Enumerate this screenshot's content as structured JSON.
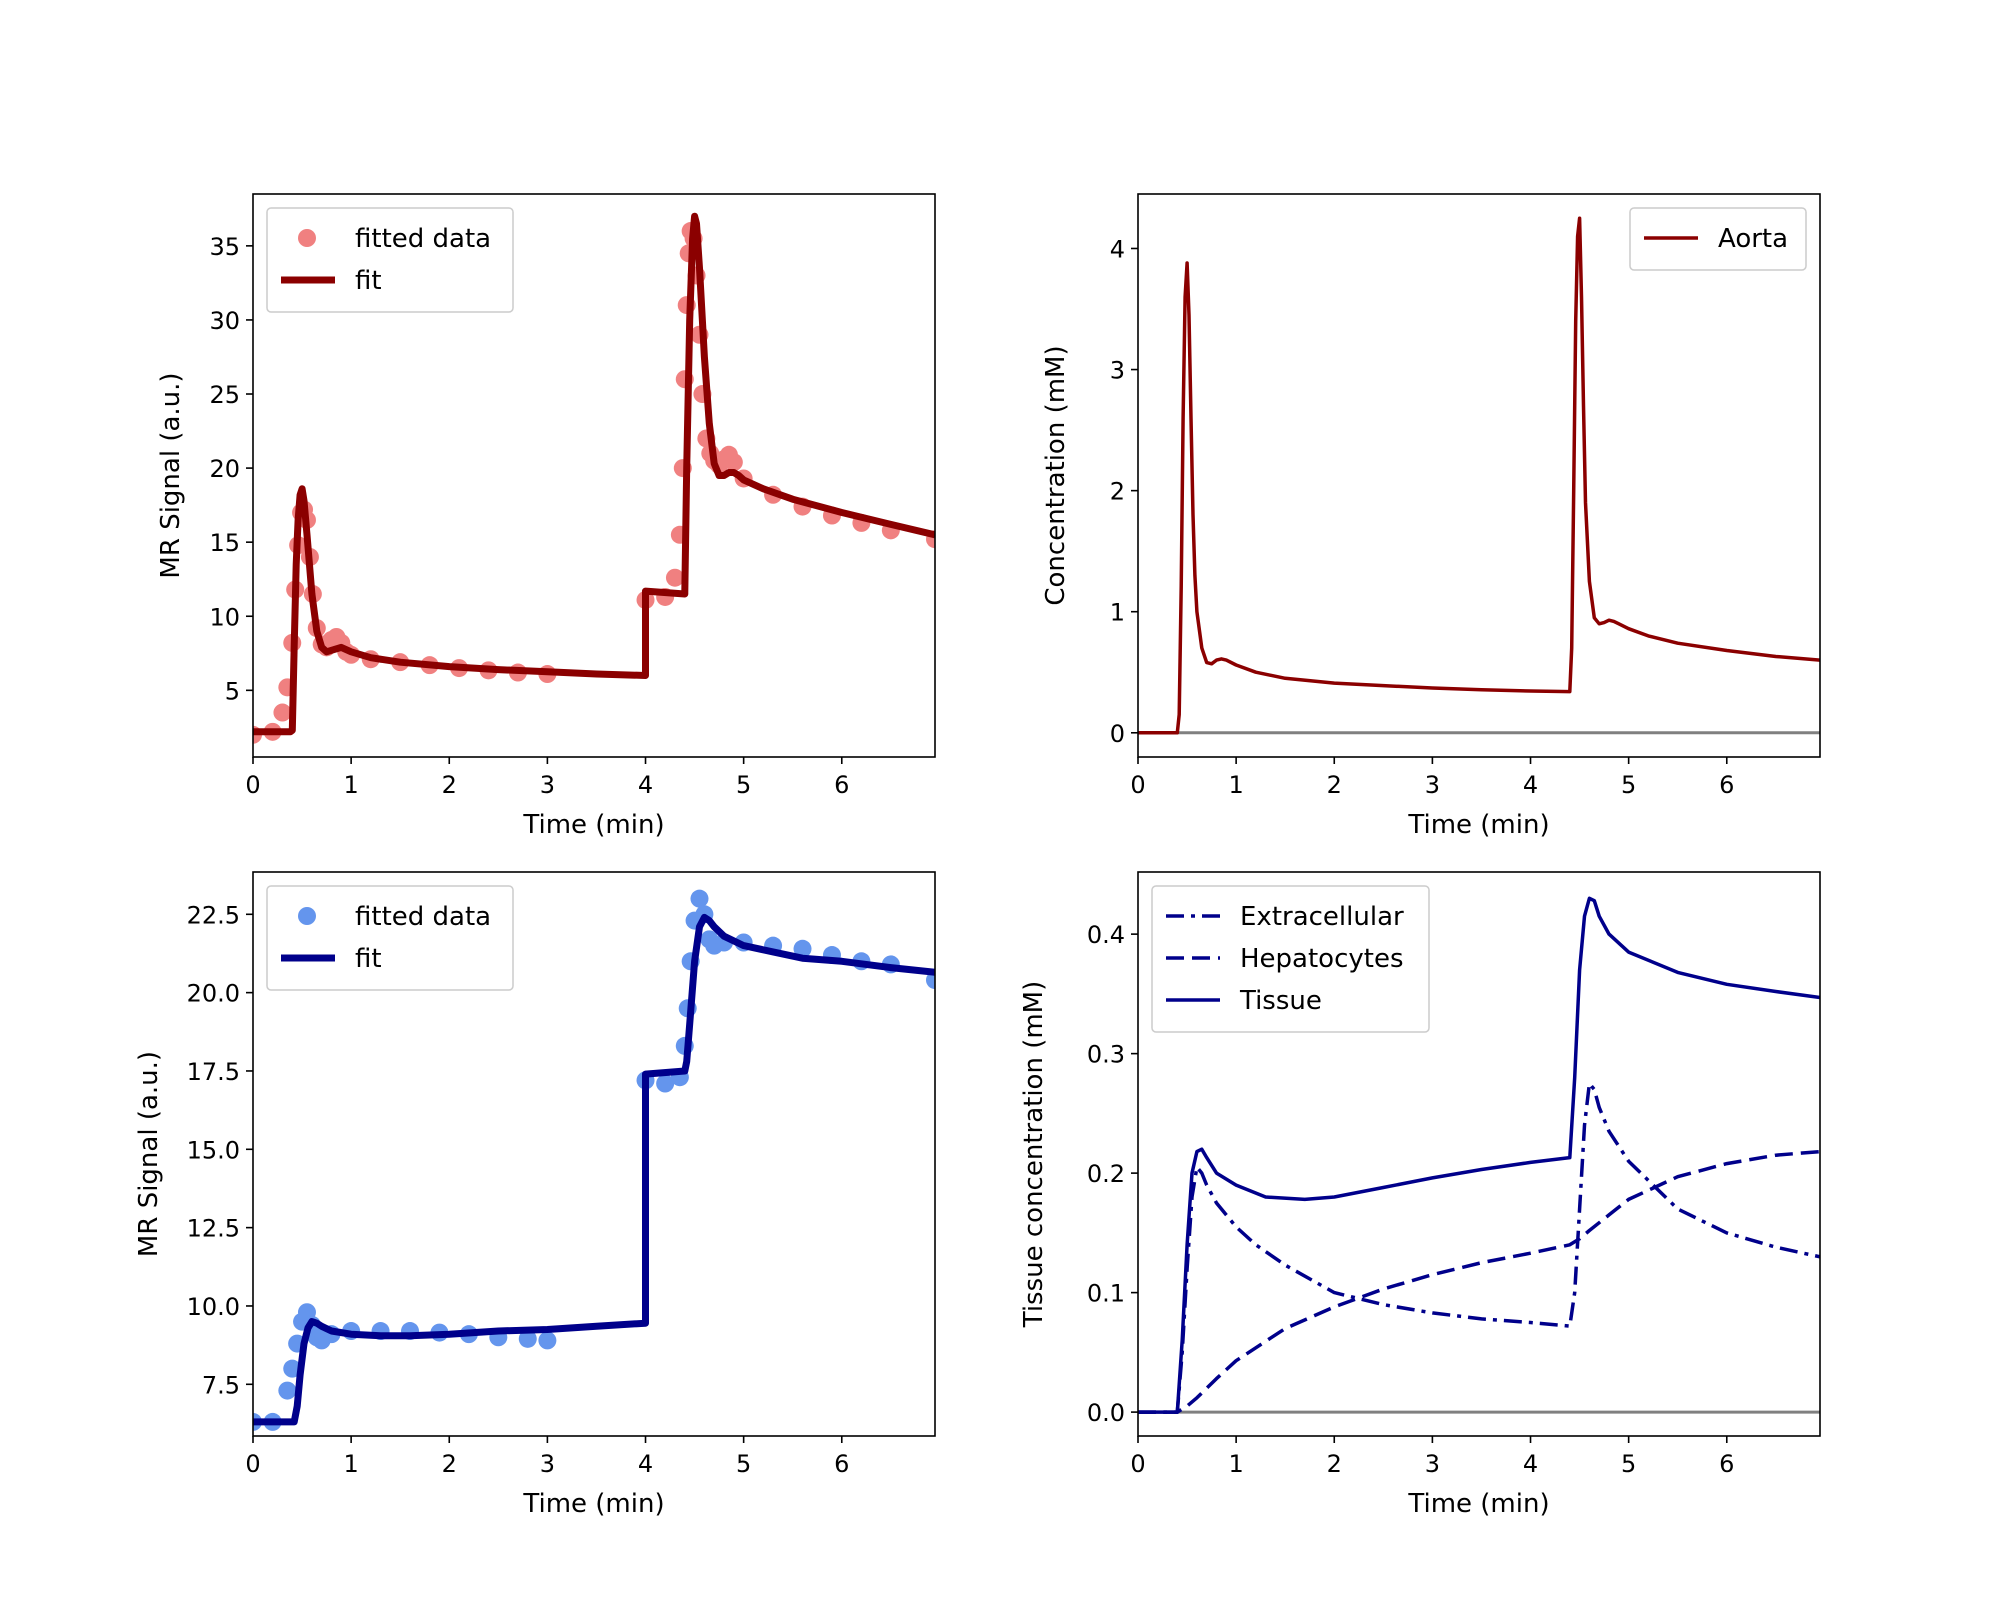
{
  "chart_data": [
    {
      "id": "signal-aorta",
      "type": "line",
      "title": "",
      "xlabel": "Time (min)",
      "ylabel": "MR Signal (a.u.)",
      "xlim": [
        0,
        6.95
      ],
      "ylim": [
        0.5,
        38.5
      ],
      "x_ticks": [
        0,
        1,
        2,
        3,
        4,
        5,
        6
      ],
      "y_ticks": [
        5,
        10,
        15,
        20,
        25,
        30,
        35
      ],
      "y_tick_format": 0,
      "grid": false,
      "legend_position": "upper-left",
      "series": [
        {
          "name": "fitted data",
          "kind": "scatter",
          "color": "#f08080",
          "x": [
            0.0,
            0.2,
            0.3,
            0.35,
            0.4,
            0.43,
            0.46,
            0.49,
            0.52,
            0.55,
            0.58,
            0.61,
            0.65,
            0.7,
            0.75,
            0.8,
            0.85,
            0.9,
            0.95,
            1.0,
            1.2,
            1.5,
            1.8,
            2.1,
            2.4,
            2.7,
            3.0,
            4.0,
            4.2,
            4.3,
            4.35,
            4.38,
            4.4,
            4.42,
            4.44,
            4.46,
            4.49,
            4.52,
            4.55,
            4.58,
            4.62,
            4.66,
            4.7,
            4.75,
            4.8,
            4.85,
            4.9,
            5.0,
            5.3,
            5.6,
            5.9,
            6.2,
            6.5,
            6.95
          ],
          "y": [
            2.0,
            2.2,
            3.5,
            5.2,
            8.2,
            11.8,
            14.8,
            17.0,
            17.2,
            16.5,
            14.0,
            11.5,
            9.2,
            8.1,
            7.9,
            8.4,
            8.6,
            8.2,
            7.6,
            7.4,
            7.1,
            6.9,
            6.7,
            6.5,
            6.35,
            6.2,
            6.1,
            11.1,
            11.3,
            12.6,
            15.5,
            20.0,
            26.0,
            31.0,
            34.5,
            36.0,
            35.5,
            33.0,
            29.0,
            25.0,
            22.0,
            21.0,
            20.5,
            20.2,
            20.6,
            20.9,
            20.4,
            19.3,
            18.2,
            17.4,
            16.8,
            16.3,
            15.8,
            15.2
          ]
        },
        {
          "name": "fit",
          "kind": "line",
          "color": "#8b0000",
          "x": [
            0.0,
            0.38,
            0.4,
            0.42,
            0.44,
            0.46,
            0.48,
            0.5,
            0.52,
            0.55,
            0.6,
            0.65,
            0.7,
            0.75,
            0.8,
            0.9,
            1.0,
            1.2,
            1.5,
            2.0,
            2.5,
            3.0,
            3.5,
            4.0,
            4.0,
            4.4,
            4.4,
            4.42,
            4.45,
            4.48,
            4.5,
            4.52,
            4.55,
            4.6,
            4.65,
            4.7,
            4.75,
            4.8,
            4.85,
            4.9,
            4.95,
            5.0,
            5.2,
            5.5,
            6.0,
            6.5,
            6.95
          ],
          "y": [
            2.2,
            2.2,
            2.3,
            8.0,
            13.5,
            16.5,
            18.2,
            18.6,
            17.8,
            15.5,
            11.5,
            9.0,
            7.9,
            7.6,
            7.7,
            7.9,
            7.6,
            7.2,
            6.9,
            6.6,
            6.4,
            6.25,
            6.1,
            6.0,
            11.7,
            11.5,
            11.6,
            20.0,
            30.0,
            35.5,
            37.0,
            36.5,
            33.5,
            27.5,
            23.0,
            20.3,
            19.5,
            19.5,
            19.7,
            19.7,
            19.5,
            19.2,
            18.6,
            17.9,
            17.0,
            16.2,
            15.5
          ]
        }
      ]
    },
    {
      "id": "aorta-concentration",
      "type": "line",
      "title": "",
      "xlabel": "Time (min)",
      "ylabel": "Concentration (mM)",
      "xlim": [
        0,
        6.95
      ],
      "ylim": [
        -0.2,
        4.45
      ],
      "x_ticks": [
        0,
        1,
        2,
        3,
        4,
        5,
        6
      ],
      "y_ticks": [
        0,
        1,
        2,
        3,
        4
      ],
      "y_tick_format": 0,
      "grid": false,
      "legend_position": "upper-right",
      "baseline": {
        "y": 0,
        "color": "#808080"
      },
      "series": [
        {
          "name": "Aorta",
          "kind": "line",
          "color": "#8b0000",
          "x": [
            0.0,
            0.4,
            0.42,
            0.44,
            0.46,
            0.48,
            0.5,
            0.52,
            0.54,
            0.56,
            0.58,
            0.6,
            0.65,
            0.7,
            0.75,
            0.8,
            0.85,
            0.9,
            1.0,
            1.2,
            1.5,
            2.0,
            2.5,
            3.0,
            3.5,
            4.0,
            4.4,
            4.42,
            4.44,
            4.46,
            4.48,
            4.5,
            4.52,
            4.54,
            4.56,
            4.6,
            4.65,
            4.7,
            4.75,
            4.8,
            4.85,
            4.9,
            5.0,
            5.2,
            5.5,
            6.0,
            6.5,
            6.95
          ],
          "y": [
            0.0,
            0.0,
            0.15,
            1.2,
            2.6,
            3.6,
            3.88,
            3.45,
            2.6,
            1.8,
            1.3,
            1.0,
            0.7,
            0.58,
            0.57,
            0.6,
            0.61,
            0.6,
            0.56,
            0.5,
            0.45,
            0.41,
            0.39,
            0.37,
            0.355,
            0.345,
            0.34,
            0.7,
            2.0,
            3.4,
            4.1,
            4.25,
            3.6,
            2.7,
            1.9,
            1.25,
            0.95,
            0.9,
            0.91,
            0.93,
            0.92,
            0.9,
            0.86,
            0.8,
            0.74,
            0.68,
            0.63,
            0.6
          ]
        }
      ]
    },
    {
      "id": "signal-liver",
      "type": "line",
      "title": "",
      "xlabel": "Time (min)",
      "ylabel": "MR Signal (a.u.)",
      "xlim": [
        0,
        6.95
      ],
      "ylim": [
        5.85,
        23.85
      ],
      "x_ticks": [
        0,
        1,
        2,
        3,
        4,
        5,
        6
      ],
      "y_ticks": [
        7.5,
        10.0,
        12.5,
        15.0,
        17.5,
        20.0,
        22.5
      ],
      "y_tick_format": 1,
      "grid": false,
      "legend_position": "upper-left",
      "series": [
        {
          "name": "fitted data",
          "kind": "scatter",
          "color": "#6495ed",
          "x": [
            0.0,
            0.2,
            0.35,
            0.4,
            0.45,
            0.5,
            0.55,
            0.6,
            0.65,
            0.7,
            0.8,
            1.0,
            1.3,
            1.6,
            1.9,
            2.2,
            2.5,
            2.8,
            3.0,
            4.0,
            4.2,
            4.35,
            4.4,
            4.43,
            4.46,
            4.5,
            4.55,
            4.6,
            4.65,
            4.7,
            4.8,
            5.0,
            5.3,
            5.6,
            5.9,
            6.2,
            6.5,
            6.95
          ],
          "y": [
            6.3,
            6.3,
            7.3,
            8.0,
            8.8,
            9.5,
            9.8,
            9.4,
            9.0,
            8.9,
            9.1,
            9.2,
            9.2,
            9.2,
            9.15,
            9.1,
            9.0,
            8.95,
            8.9,
            17.2,
            17.1,
            17.3,
            18.3,
            19.5,
            21.0,
            22.3,
            23.0,
            22.5,
            21.7,
            21.5,
            21.6,
            21.6,
            21.5,
            21.4,
            21.2,
            21.0,
            20.9,
            20.4
          ]
        },
        {
          "name": "fit",
          "kind": "line",
          "color": "#00008b",
          "x": [
            0.0,
            0.42,
            0.45,
            0.48,
            0.52,
            0.56,
            0.6,
            0.65,
            0.7,
            0.8,
            1.0,
            1.3,
            1.6,
            2.0,
            2.5,
            3.0,
            3.5,
            4.0,
            4.0,
            4.4,
            4.42,
            4.45,
            4.5,
            4.55,
            4.6,
            4.65,
            4.7,
            4.8,
            5.0,
            5.3,
            5.6,
            6.0,
            6.5,
            6.95
          ],
          "y": [
            6.3,
            6.3,
            6.8,
            7.8,
            8.8,
            9.3,
            9.5,
            9.45,
            9.35,
            9.2,
            9.1,
            9.05,
            9.05,
            9.1,
            9.2,
            9.25,
            9.35,
            9.45,
            17.4,
            17.5,
            17.8,
            19.0,
            21.0,
            22.1,
            22.4,
            22.3,
            22.1,
            21.8,
            21.5,
            21.3,
            21.1,
            21.0,
            20.8,
            20.65
          ]
        }
      ]
    },
    {
      "id": "tissue-concentration",
      "type": "line",
      "title": "",
      "xlabel": "Time (min)",
      "ylabel": "Tissue concentration (mM)",
      "xlim": [
        0,
        6.95
      ],
      "ylim": [
        -0.02,
        0.452
      ],
      "x_ticks": [
        0,
        1,
        2,
        3,
        4,
        5,
        6
      ],
      "y_ticks": [
        0.0,
        0.1,
        0.2,
        0.3,
        0.4
      ],
      "y_tick_format": 1,
      "grid": false,
      "legend_position": "upper-left",
      "baseline": {
        "y": 0,
        "color": "#808080"
      },
      "series": [
        {
          "name": "Extracellular",
          "kind": "line",
          "dash": "dashdot",
          "color": "#00008b",
          "x": [
            0.0,
            0.4,
            0.45,
            0.5,
            0.55,
            0.6,
            0.65,
            0.7,
            0.8,
            1.0,
            1.2,
            1.5,
            2.0,
            2.5,
            3.0,
            3.5,
            4.0,
            4.4,
            4.45,
            4.5,
            4.55,
            4.6,
            4.65,
            4.7,
            4.8,
            5.0,
            5.5,
            6.0,
            6.5,
            6.95
          ],
          "y": [
            0.0,
            0.0,
            0.05,
            0.12,
            0.18,
            0.205,
            0.2,
            0.19,
            0.175,
            0.155,
            0.14,
            0.123,
            0.1,
            0.09,
            0.083,
            0.078,
            0.075,
            0.072,
            0.1,
            0.17,
            0.24,
            0.275,
            0.27,
            0.255,
            0.235,
            0.21,
            0.17,
            0.15,
            0.138,
            0.13
          ]
        },
        {
          "name": "Hepatocytes",
          "kind": "line",
          "dash": "dashed",
          "color": "#00008b",
          "x": [
            0.0,
            0.4,
            0.5,
            0.6,
            0.8,
            1.0,
            1.5,
            2.0,
            2.5,
            3.0,
            3.5,
            4.0,
            4.4,
            4.5,
            4.6,
            4.8,
            5.0,
            5.5,
            6.0,
            6.5,
            6.95
          ],
          "y": [
            0.0,
            0.0,
            0.005,
            0.012,
            0.028,
            0.043,
            0.07,
            0.088,
            0.103,
            0.115,
            0.125,
            0.133,
            0.14,
            0.145,
            0.152,
            0.165,
            0.178,
            0.197,
            0.208,
            0.215,
            0.218
          ]
        },
        {
          "name": "Tissue",
          "kind": "line",
          "dash": "solid",
          "color": "#00008b",
          "x": [
            0.0,
            0.4,
            0.45,
            0.5,
            0.55,
            0.6,
            0.65,
            0.7,
            0.8,
            1.0,
            1.3,
            1.7,
            2.0,
            2.5,
            3.0,
            3.5,
            4.0,
            4.4,
            4.45,
            4.5,
            4.55,
            4.6,
            4.65,
            4.7,
            4.8,
            5.0,
            5.5,
            6.0,
            6.5,
            6.95
          ],
          "y": [
            0.0,
            0.0,
            0.06,
            0.14,
            0.2,
            0.218,
            0.22,
            0.213,
            0.2,
            0.19,
            0.18,
            0.178,
            0.18,
            0.188,
            0.196,
            0.203,
            0.209,
            0.213,
            0.28,
            0.37,
            0.415,
            0.43,
            0.428,
            0.415,
            0.4,
            0.385,
            0.368,
            0.358,
            0.352,
            0.347
          ]
        }
      ]
    }
  ]
}
